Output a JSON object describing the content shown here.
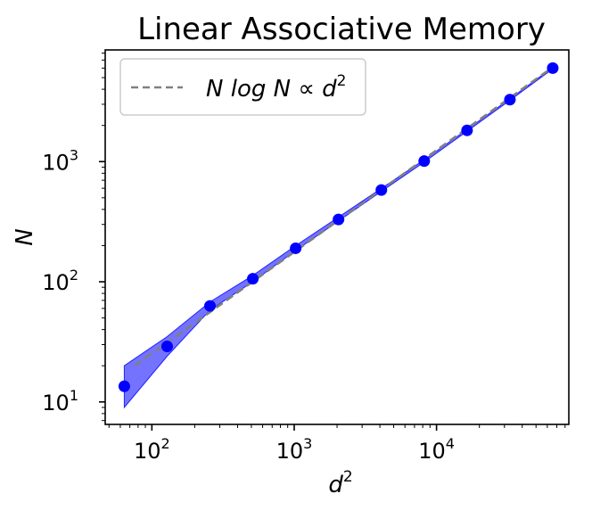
{
  "chart_data": {
    "type": "scatter",
    "title": "Linear Associative Memory",
    "xlabel": "d",
    "xlabel_exp": "2",
    "ylabel": "N",
    "xscale": "log",
    "yscale": "log",
    "xlim": [
      47,
      85000
    ],
    "ylim": [
      6.5,
      8500
    ],
    "x_ticks": [
      {
        "base": "10",
        "exp": "2",
        "value": 100
      },
      {
        "base": "10",
        "exp": "3",
        "value": 1000
      },
      {
        "base": "10",
        "exp": "4",
        "value": 10000
      }
    ],
    "y_ticks": [
      {
        "base": "10",
        "exp": "1",
        "value": 10
      },
      {
        "base": "10",
        "exp": "2",
        "value": 100
      },
      {
        "base": "10",
        "exp": "3",
        "value": 1000
      }
    ],
    "grid": false,
    "legend": {
      "position": "top-left",
      "label_main": "N log N ∝ d",
      "label_exp": "2"
    },
    "series": [
      {
        "kind": "points",
        "color": "#0000ff",
        "x": [
          64,
          128,
          256,
          512,
          1024,
          2048,
          4096,
          8192,
          16384,
          32768,
          65536
        ],
        "y": [
          13.5,
          29,
          63,
          106,
          190,
          330,
          580,
          1010,
          1820,
          3280,
          6000
        ]
      },
      {
        "kind": "band",
        "color": "#0000ff",
        "opacity": 0.55,
        "x": [
          64,
          128,
          256,
          512,
          1024,
          2048,
          4096,
          8192,
          16384,
          32768,
          65536
        ],
        "lower": [
          9,
          24,
          58,
          100,
          182,
          320,
          565,
          990,
          1790,
          3230,
          5920
        ],
        "upper": [
          20,
          35,
          68,
          113,
          200,
          345,
          598,
          1035,
          1855,
          3330,
          6090
        ]
      },
      {
        "kind": "dashed-line",
        "color": "#808080",
        "x": [
          76,
          65536
        ],
        "y": [
          20,
          6100
        ]
      }
    ]
  }
}
